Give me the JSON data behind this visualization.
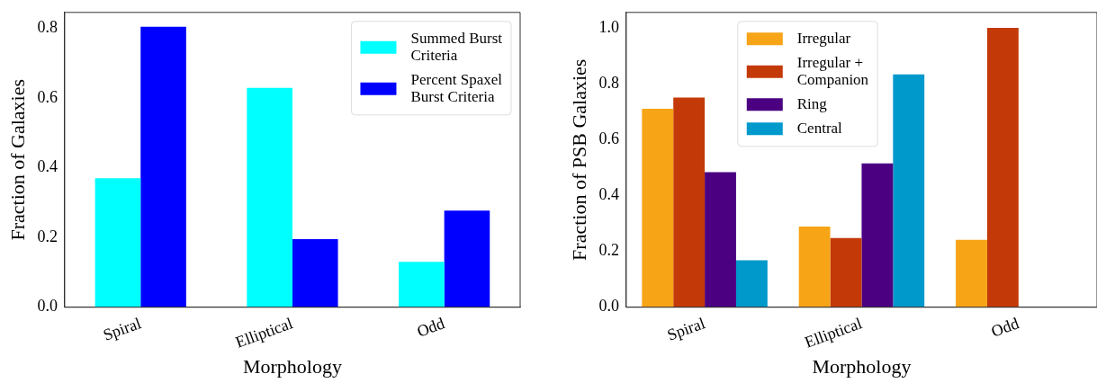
{
  "chart_data": [
    {
      "type": "bar",
      "xlabel": "Morphology",
      "ylabel": "Fraction of Galaxies",
      "categories": [
        "Spiral",
        "Elliptical",
        "Odd"
      ],
      "series": [
        {
          "name": "Summed Burst Criteria",
          "color": "#00ffff",
          "values": [
            0.37,
            0.629,
            0.13
          ]
        },
        {
          "name": "Percent Spaxel Burst Criteria",
          "color": "#0000ff",
          "values": [
            0.804,
            0.195,
            0.277
          ]
        }
      ],
      "ylim": [
        0,
        0.845
      ],
      "yticks": [
        {
          "value": 0,
          "label": "0.0"
        },
        {
          "value": 0.2,
          "label": "0.2"
        },
        {
          "value": 0.4,
          "label": "0.4"
        },
        {
          "value": 0.6,
          "label": "0.6"
        },
        {
          "value": 0.8,
          "label": "0.8"
        }
      ],
      "legend": "top right"
    },
    {
      "type": "bar",
      "xlabel": "Morphology",
      "ylabel": "Fraction of PSB Galaxies",
      "categories": [
        "Spiral",
        "Elliptical",
        "Odd"
      ],
      "series": [
        {
          "name": "Irregular",
          "color": "#f7a416",
          "values": [
            0.71,
            0.289,
            0.241
          ]
        },
        {
          "name": "Irregular + Companion",
          "color": "#c33a08",
          "values": [
            0.75,
            0.248,
            1.0
          ]
        },
        {
          "name": "Ring",
          "color": "#4b0082",
          "values": [
            0.483,
            0.515,
            0
          ]
        },
        {
          "name": "Central",
          "color": "#0099cc",
          "values": [
            0.168,
            0.833,
            0
          ]
        }
      ],
      "ylim": [
        0,
        1.055
      ],
      "yticks": [
        {
          "value": 0,
          "label": "0.0"
        },
        {
          "value": 0.2,
          "label": "0.2"
        },
        {
          "value": 0.4,
          "label": "0.4"
        },
        {
          "value": 0.6,
          "label": "0.6"
        },
        {
          "value": 0.8,
          "label": "0.8"
        },
        {
          "value": 1.0,
          "label": "1.0"
        }
      ],
      "legend": "top"
    }
  ]
}
